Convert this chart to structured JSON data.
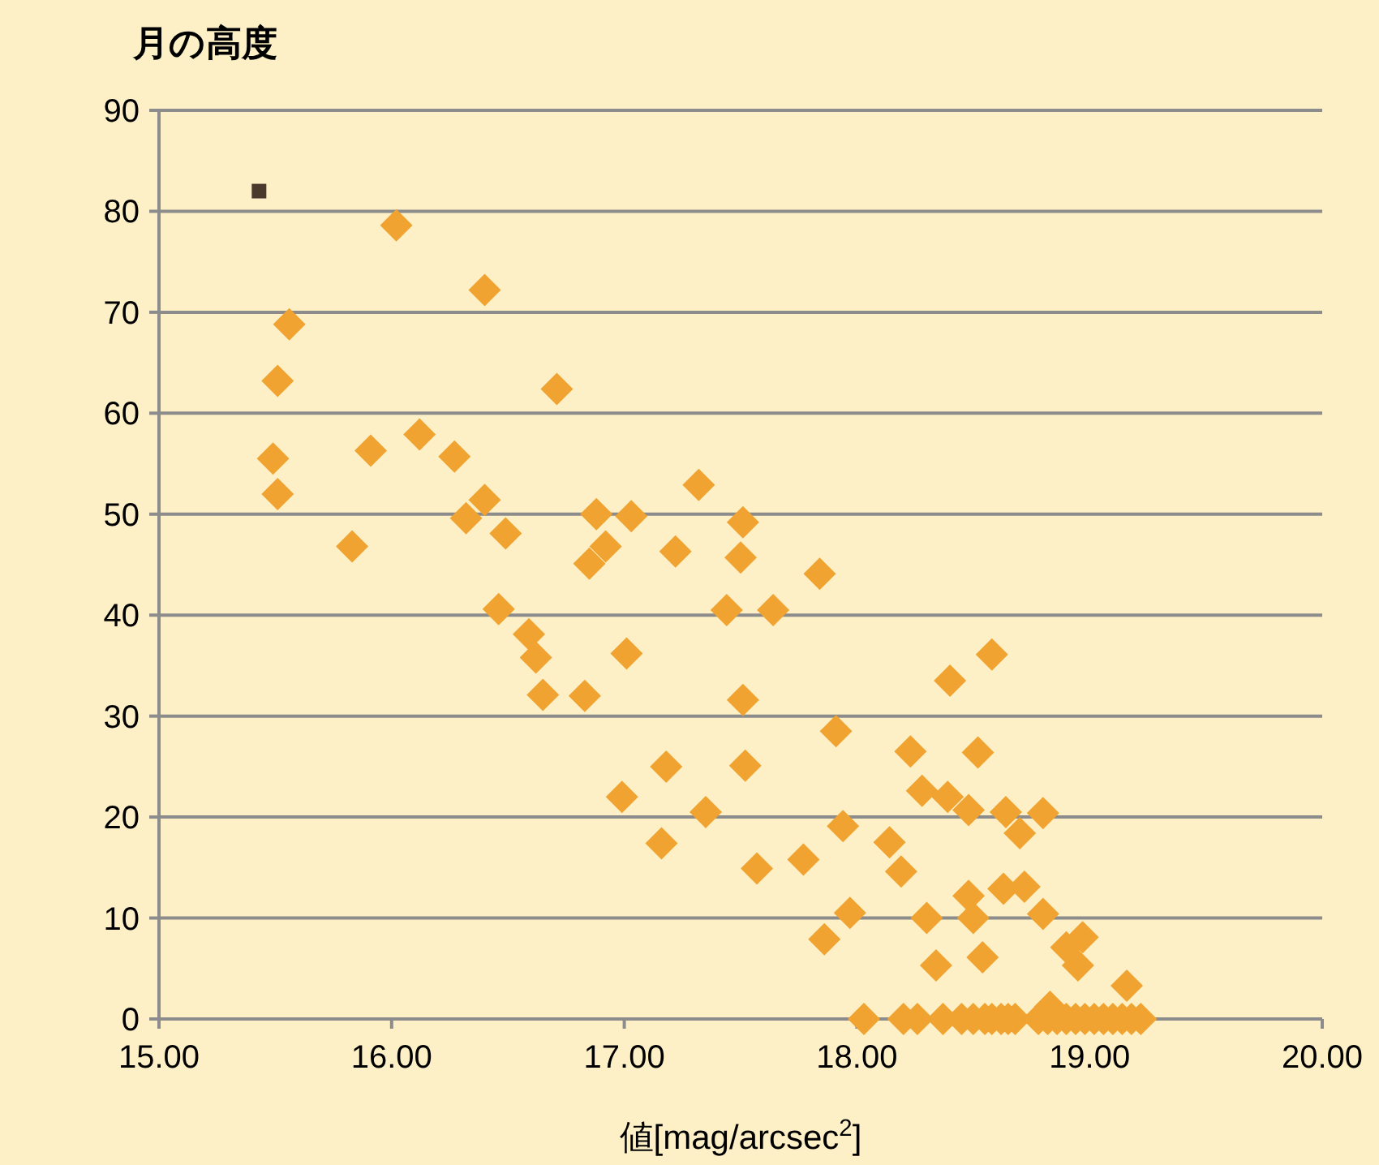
{
  "chart_data": {
    "type": "scatter",
    "title": "月の高度",
    "xlabel": "値[mag/arcsec$^{2}$]",
    "xlim": [
      15,
      20
    ],
    "ylim": [
      0,
      90
    ],
    "xticks": [
      {
        "value": 15,
        "label": "15.00"
      },
      {
        "value": 16,
        "label": "16.00"
      },
      {
        "value": 17,
        "label": "17.00"
      },
      {
        "value": 18,
        "label": "18.00"
      },
      {
        "value": 19,
        "label": "19.00"
      },
      {
        "value": 20,
        "label": "20.00"
      }
    ],
    "yticks": [
      0,
      10,
      20,
      30,
      40,
      50,
      60,
      70,
      80,
      90
    ],
    "grid": "y",
    "series": [
      {
        "color": "#f0a330",
        "marker": "diamond",
        "x": [
          16.02,
          16.4,
          15.56,
          15.51,
          16.71,
          15.49,
          15.91,
          16.12,
          16.27,
          15.51,
          17.32,
          16.4,
          16.32,
          16.49,
          16.88,
          17.03,
          17.51,
          15.83,
          16.92,
          16.85,
          17.22,
          17.5,
          16.46,
          17.44,
          16.59,
          16.62,
          17.01,
          16.65,
          16.83,
          17.51,
          17.18,
          17.52,
          16.99,
          17.35,
          17.16,
          17.57,
          17.84,
          17.64,
          18.58,
          18.4,
          17.91,
          18.23,
          18.52,
          18.28,
          18.39,
          18.48,
          18.64,
          18.7,
          18.8,
          17.94,
          18.14,
          17.77,
          18.19,
          18.48,
          18.63,
          18.72,
          18.5,
          17.97,
          18.3,
          18.8,
          17.86,
          18.34,
          18.54,
          18.9,
          18.97,
          18.95,
          19.16,
          18.83,
          18.03,
          18.2,
          18.26,
          18.37,
          18.45,
          18.5,
          18.55,
          18.58,
          18.62,
          18.65,
          18.68,
          18.78,
          18.82,
          18.86,
          18.9,
          18.94,
          18.98,
          19.02,
          19.06,
          19.1,
          19.14,
          19.18,
          19.22
        ],
        "values": [
          78.6,
          72.2,
          68.8,
          63.2,
          62.4,
          55.5,
          56.3,
          57.9,
          55.7,
          52.0,
          52.9,
          51.4,
          49.6,
          48.1,
          50.0,
          49.8,
          49.2,
          46.8,
          46.8,
          45.1,
          46.3,
          45.7,
          40.6,
          40.5,
          38.1,
          35.8,
          36.2,
          32.1,
          32.0,
          31.6,
          25.0,
          25.1,
          22.0,
          20.5,
          17.4,
          14.9,
          44.1,
          40.5,
          36.1,
          33.5,
          28.5,
          26.5,
          26.4,
          22.6,
          22.0,
          20.7,
          20.5,
          18.4,
          20.4,
          19.1,
          17.5,
          15.8,
          14.6,
          12.2,
          12.9,
          13.1,
          10.0,
          10.5,
          10.0,
          10.4,
          7.9,
          5.3,
          6.1,
          7.1,
          8.1,
          5.3,
          3.3,
          1.2,
          0,
          0,
          0,
          0,
          0,
          0,
          0,
          0,
          0,
          0,
          0,
          0,
          0,
          0,
          0,
          0,
          0,
          0,
          0,
          0,
          0,
          0,
          0
        ]
      },
      {
        "color": "#4a3a2e",
        "marker": "square",
        "x": [
          15.43
        ],
        "values": [
          82
        ]
      }
    ]
  }
}
